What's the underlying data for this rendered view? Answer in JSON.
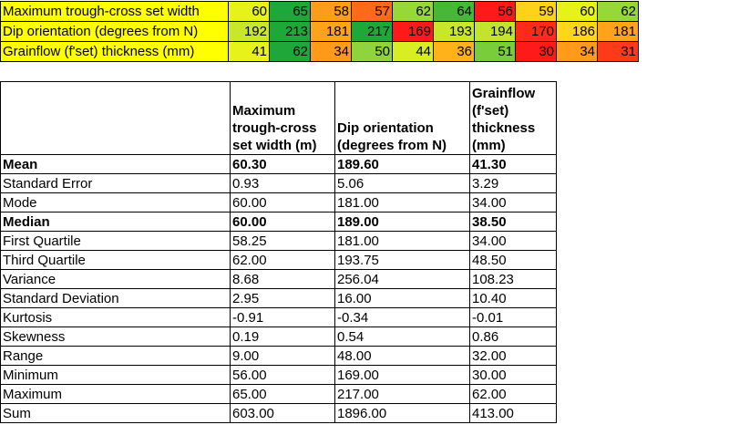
{
  "heat_rows": [
    {
      "label": "Maximum trough-cross set width",
      "cells": [
        {
          "v": "60",
          "c": "#e6f21a"
        },
        {
          "v": "65",
          "c": "#1fa83a"
        },
        {
          "v": "58",
          "c": "#ff9d1a"
        },
        {
          "v": "57",
          "c": "#ff6a1a"
        },
        {
          "v": "62",
          "c": "#95d838"
        },
        {
          "v": "64",
          "c": "#46b836"
        },
        {
          "v": "56",
          "c": "#ff1a1a"
        },
        {
          "v": "59",
          "c": "#ffd21a"
        },
        {
          "v": "60",
          "c": "#e6f21a"
        },
        {
          "v": "62",
          "c": "#95d838"
        }
      ]
    },
    {
      "label": "Dip orientation (degrees from N)",
      "cells": [
        {
          "v": "192",
          "c": "#c8e62a"
        },
        {
          "v": "213",
          "c": "#1fa83a"
        },
        {
          "v": "181",
          "c": "#ffa41a"
        },
        {
          "v": "217",
          "c": "#1fa83a"
        },
        {
          "v": "169",
          "c": "#ff1a1a"
        },
        {
          "v": "193",
          "c": "#c8e62a"
        },
        {
          "v": "194",
          "c": "#c2e42c"
        },
        {
          "v": "170",
          "c": "#ff2a1a"
        },
        {
          "v": "186",
          "c": "#ffd61a"
        },
        {
          "v": "181",
          "c": "#ffa41a"
        }
      ]
    },
    {
      "label": "Grainflow (f'set) thickness (mm)",
      "cells": [
        {
          "v": "41",
          "c": "#e6f21a"
        },
        {
          "v": "62",
          "c": "#1fa83a"
        },
        {
          "v": "34",
          "c": "#ff9a1a"
        },
        {
          "v": "50",
          "c": "#8fd43a"
        },
        {
          "v": "44",
          "c": "#d8ee22"
        },
        {
          "v": "36",
          "c": "#ffb21a"
        },
        {
          "v": "51",
          "c": "#79cc3a"
        },
        {
          "v": "30",
          "c": "#ff1a1a"
        },
        {
          "v": "34",
          "c": "#ff9a1a"
        },
        {
          "v": "31",
          "c": "#ff3a1a"
        }
      ]
    }
  ],
  "stats": {
    "headers": [
      "",
      "Maximum trough-cross set width (m)",
      "Dip orientation (degrees from N)",
      "Grainflow (f'set) thickness (mm)"
    ],
    "rows": [
      {
        "label": "Mean",
        "bold": true,
        "vals": [
          "60.30",
          "189.60",
          "41.30"
        ]
      },
      {
        "label": "Standard Error",
        "bold": false,
        "vals": [
          "0.93",
          "5.06",
          "3.29"
        ]
      },
      {
        "label": "Mode",
        "bold": false,
        "vals": [
          "60.00",
          "181.00",
          "34.00"
        ]
      },
      {
        "label": "Median",
        "bold": true,
        "vals": [
          "60.00",
          "189.00",
          "38.50"
        ]
      },
      {
        "label": "First Quartile",
        "bold": false,
        "vals": [
          "58.25",
          "181.00",
          "34.00"
        ]
      },
      {
        "label": "Third Quartile",
        "bold": false,
        "vals": [
          "62.00",
          "193.75",
          "48.50"
        ]
      },
      {
        "label": "Variance",
        "bold": false,
        "vals": [
          "8.68",
          "256.04",
          "108.23"
        ]
      },
      {
        "label": "Standard Deviation",
        "bold": false,
        "vals": [
          "2.95",
          "16.00",
          "10.40"
        ]
      },
      {
        "label": "Kurtosis",
        "bold": false,
        "vals": [
          "-0.91",
          "-0.34",
          "-0.01"
        ]
      },
      {
        "label": "Skewness",
        "bold": false,
        "vals": [
          "0.19",
          "0.54",
          "0.86"
        ]
      },
      {
        "label": "Range",
        "bold": false,
        "vals": [
          "9.00",
          "48.00",
          "32.00"
        ]
      },
      {
        "label": "Minimum",
        "bold": false,
        "vals": [
          "56.00",
          "169.00",
          "30.00"
        ]
      },
      {
        "label": "Maximum",
        "bold": false,
        "vals": [
          "65.00",
          "217.00",
          "62.00"
        ]
      },
      {
        "label": "Sum",
        "bold": false,
        "vals": [
          "603.00",
          "1896.00",
          "413.00"
        ]
      }
    ]
  }
}
